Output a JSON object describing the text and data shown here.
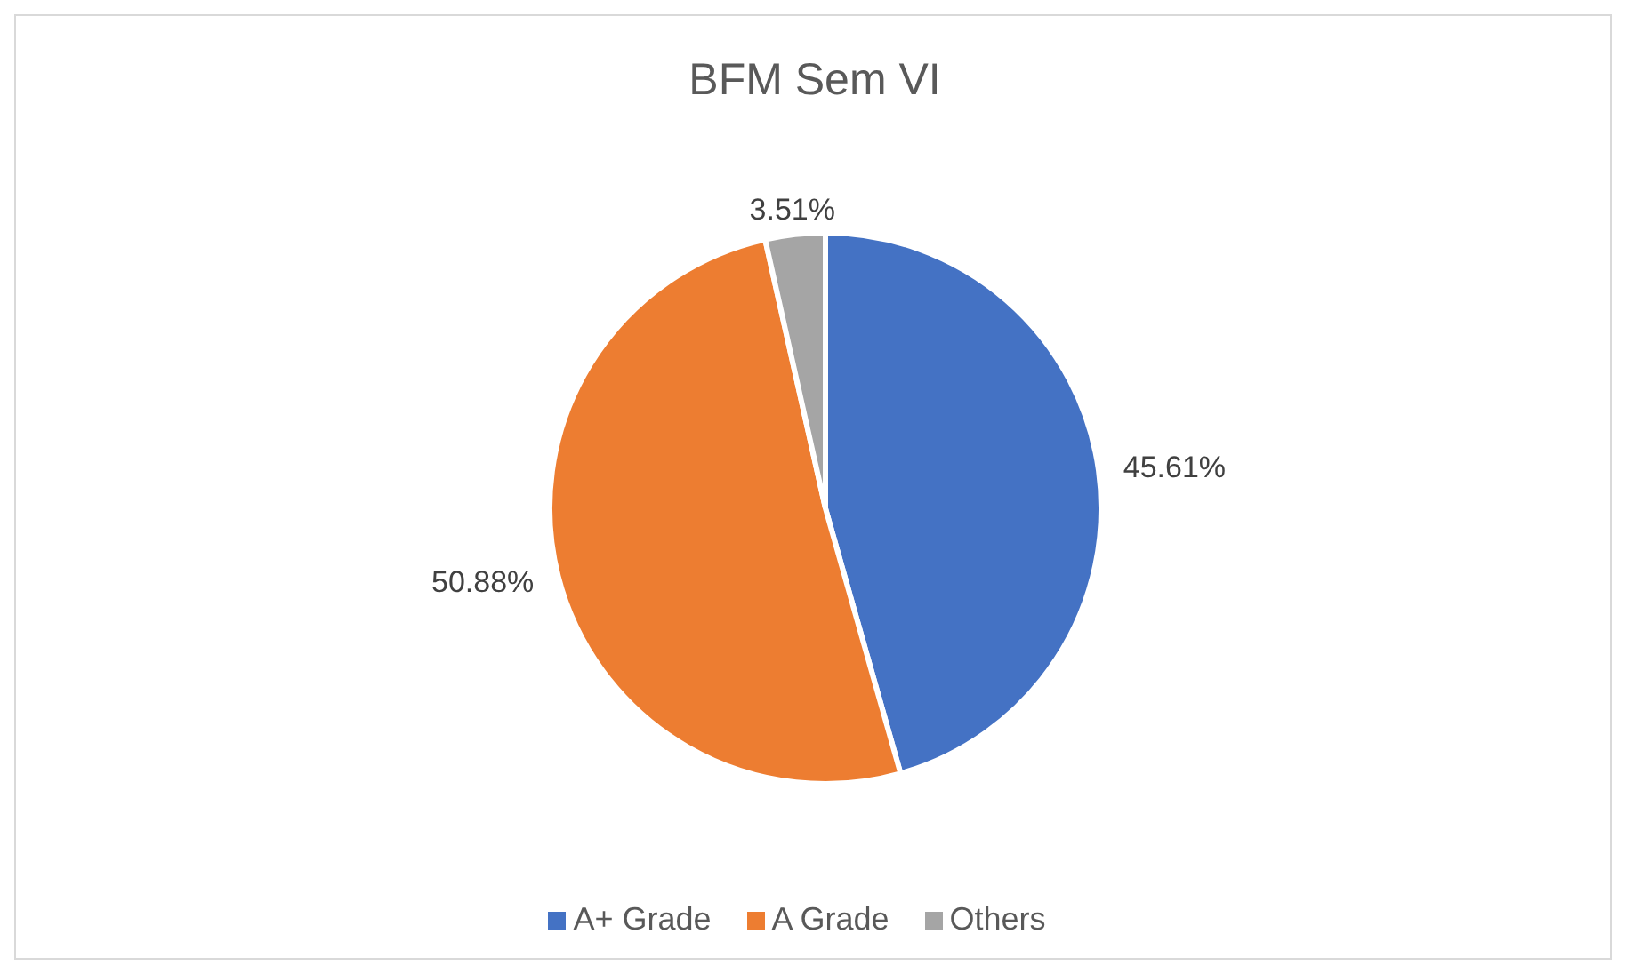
{
  "chart_data": {
    "type": "pie",
    "title": "BFM Sem VI",
    "categories": [
      "A+ Grade",
      "A Grade",
      "Others"
    ],
    "values": [
      45.61,
      50.88,
      3.51
    ],
    "colors": [
      "#4472c4",
      "#ed7d31",
      "#a5a5a5"
    ],
    "value_labels": [
      "45.61%",
      "50.88%",
      "3.51%"
    ],
    "legend": "bottom"
  }
}
